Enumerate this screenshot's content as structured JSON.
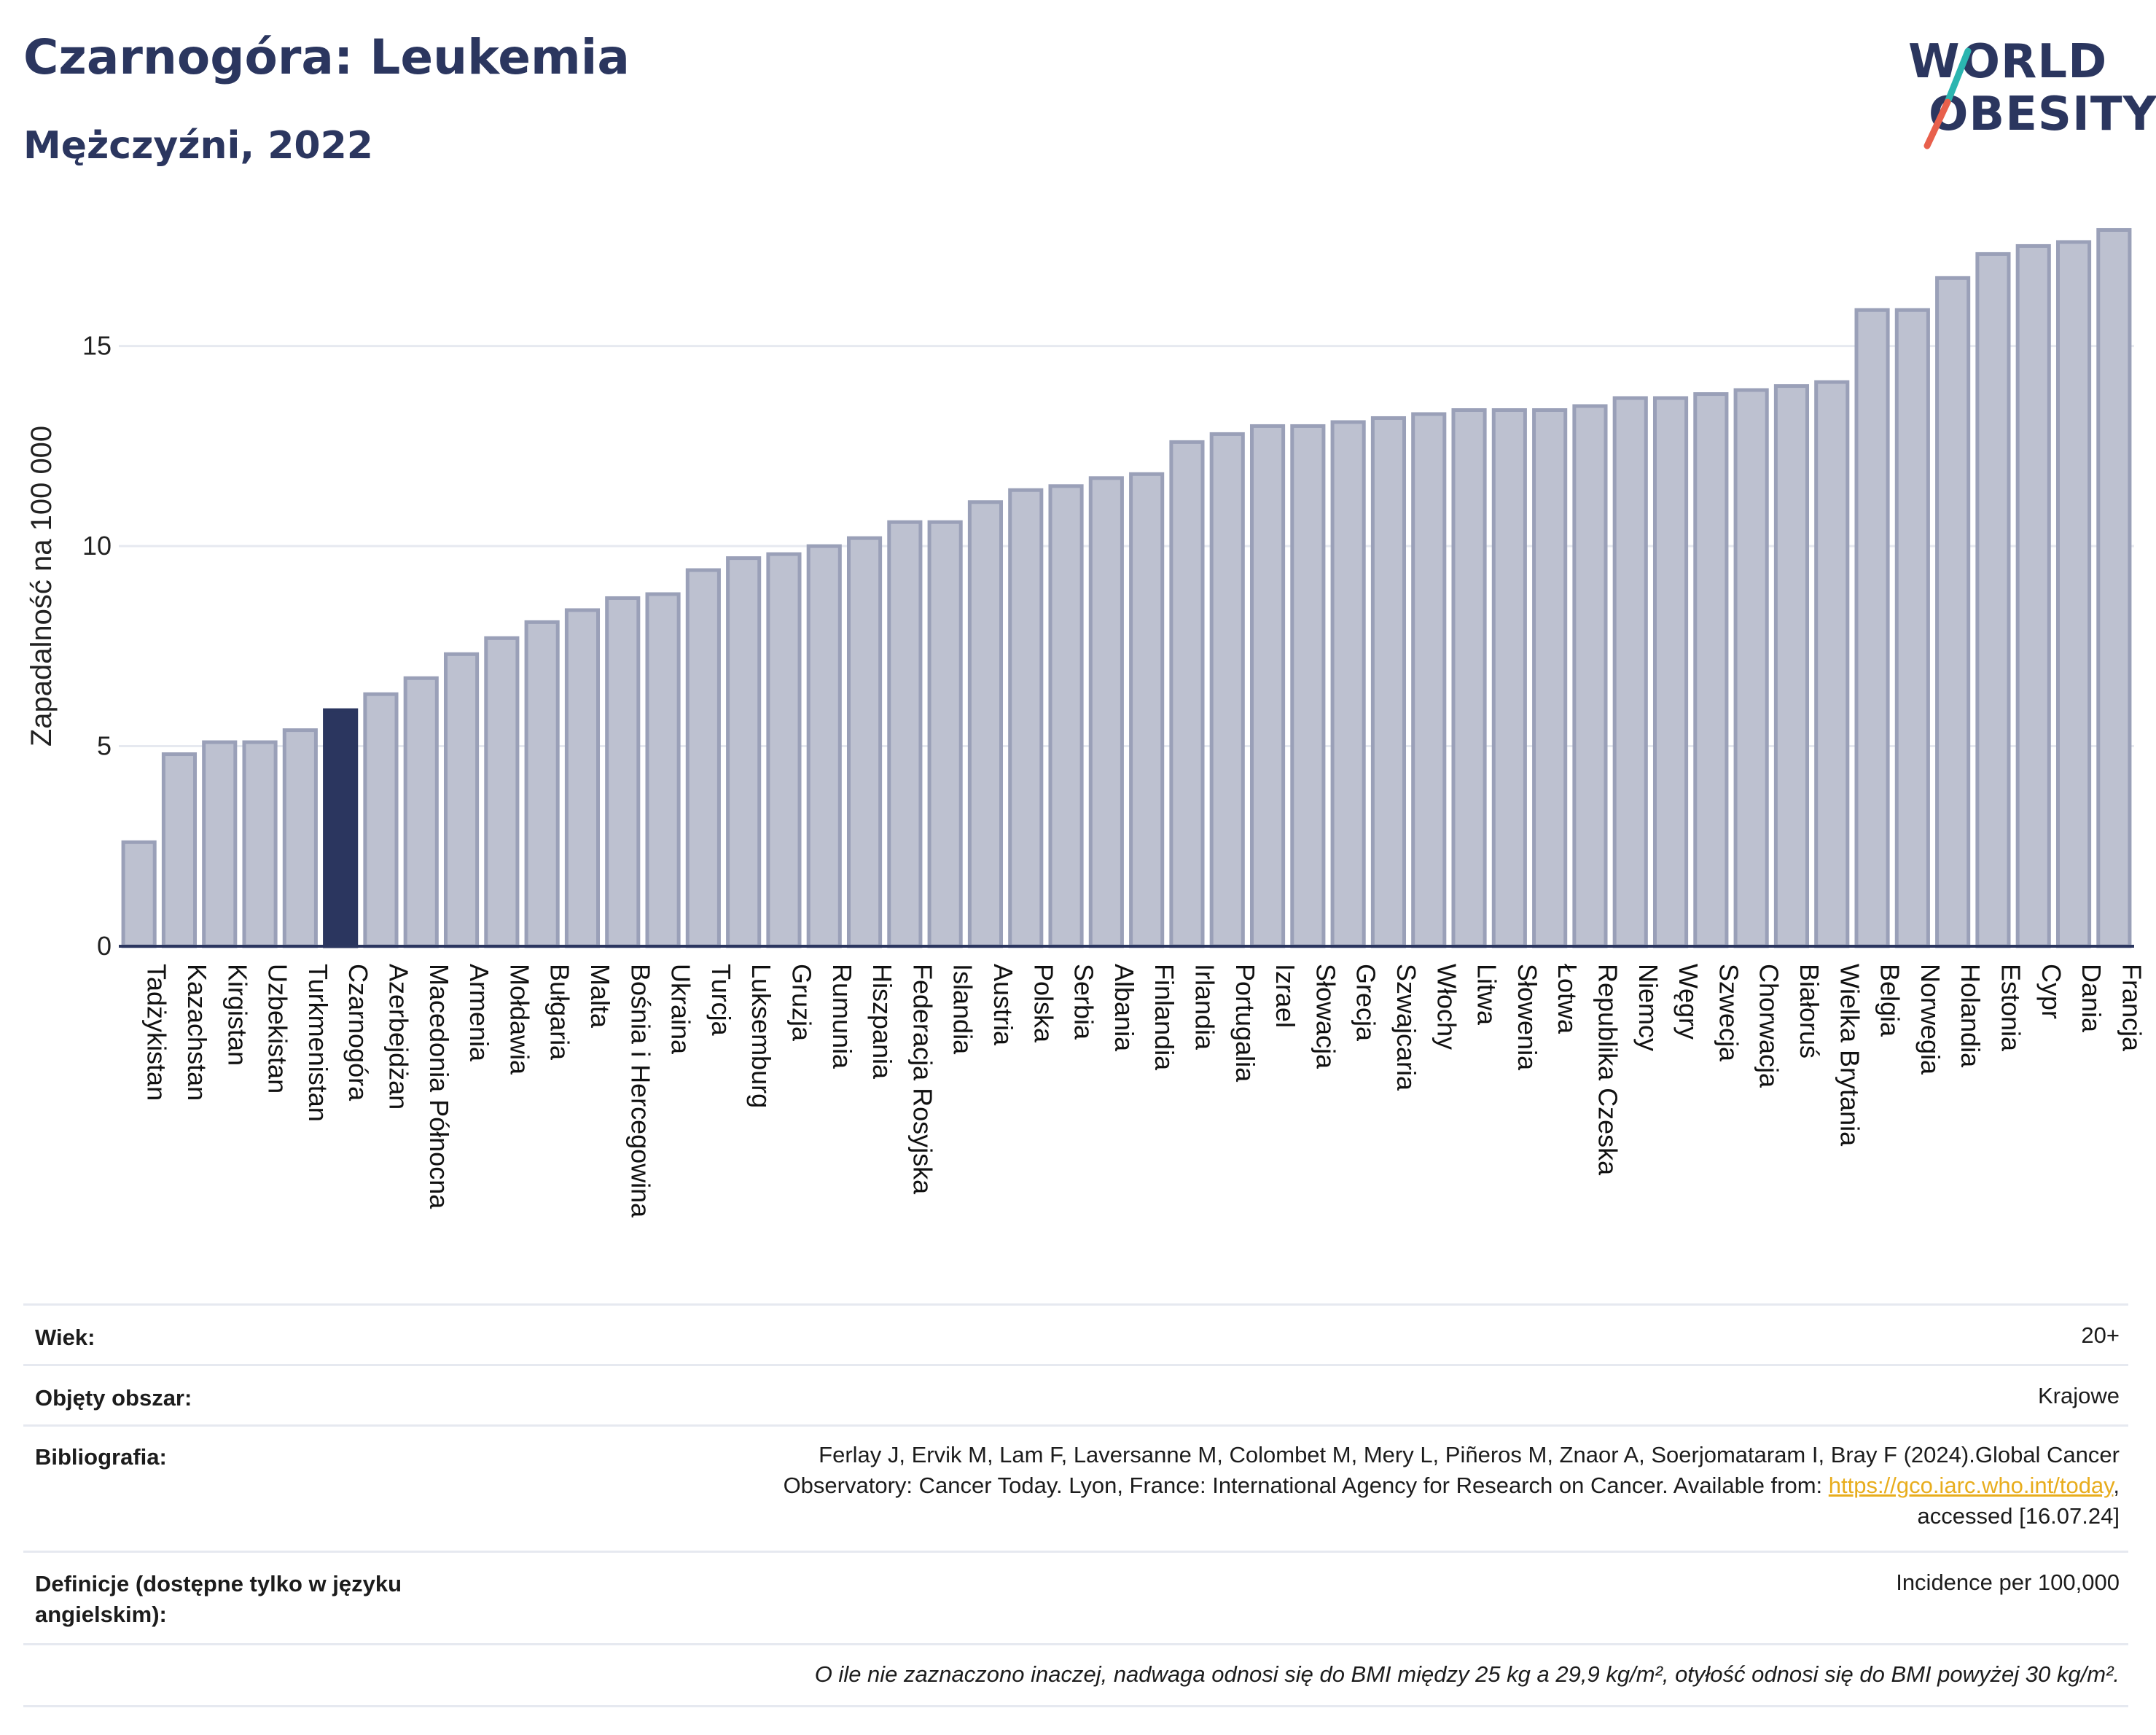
{
  "header": {
    "title": "Czarnogóra: Leukemia",
    "subtitle": "Mężczyźni, 2022"
  },
  "logo": {
    "line1": "WORLD",
    "line2": "OBESITY"
  },
  "colors": {
    "highlight": "#2b365f",
    "bar": "#bdc1d0",
    "bar_border": "#9aa0b8",
    "grid": "#e6e9f0",
    "brand": "#2b365f",
    "accent_teal": "#2bb5b0",
    "accent_red": "#e8604c",
    "link": "#e8ad1d"
  },
  "chart_data": {
    "type": "bar",
    "ylabel": "Zapadalność na 100 000",
    "ylim": [
      0,
      18
    ],
    "yticks": [
      0,
      5,
      10,
      15
    ],
    "grid": true,
    "highlight": "Czarnogóra",
    "categories": [
      "Tadżykistan",
      "Kazachstan",
      "Kirgistan",
      "Uzbekistan",
      "Turkmenistan",
      "Czarnogóra",
      "Azerbejdżan",
      "Macedonia Północna",
      "Armenia",
      "Mołdawia",
      "Bułgaria",
      "Malta",
      "Bośnia i Hercegowina",
      "Ukraina",
      "Turcja",
      "Luksemburg",
      "Gruzja",
      "Rumunia",
      "Hiszpania",
      "Federacja Rosyjska",
      "Islandia",
      "Austria",
      "Polska",
      "Serbia",
      "Albania",
      "Finlandia",
      "Irlandia",
      "Portugalia",
      "Izrael",
      "Słowacja",
      "Grecja",
      "Szwajcaria",
      "Włochy",
      "Litwa",
      "Słowenia",
      "Łotwa",
      "Republika Czeska",
      "Niemcy",
      "Węgry",
      "Szwecja",
      "Chorwacja",
      "Białoruś",
      "Wielka Brytania",
      "Belgia",
      "Norwegia",
      "Holandia",
      "Estonia",
      "Cypr",
      "Dania",
      "Francja"
    ],
    "values": [
      2.6,
      4.8,
      5.1,
      5.1,
      5.4,
      5.9,
      6.3,
      6.7,
      7.3,
      7.7,
      8.1,
      8.4,
      8.7,
      8.8,
      9.4,
      9.7,
      9.8,
      10.0,
      10.2,
      10.6,
      10.6,
      11.1,
      11.4,
      11.5,
      11.7,
      11.8,
      12.6,
      12.8,
      13.0,
      13.0,
      13.1,
      13.2,
      13.3,
      13.4,
      13.4,
      13.4,
      13.5,
      13.7,
      13.7,
      13.8,
      13.9,
      14.0,
      14.1,
      15.9,
      15.9,
      16.7,
      17.3,
      17.5,
      17.6,
      17.9
    ]
  },
  "info": {
    "age_label": "Wiek:",
    "age_value": "20+",
    "area_label": "Objęty obszar:",
    "area_value": "Krajowe",
    "biblio_label": "Bibliografia:",
    "biblio_line1": "Ferlay J, Ervik M, Lam F, Laversanne M, Colombet M, Mery L, Piñeros M, Znaor A, Soerjomataram I, Bray F (2024).Global Cancer",
    "biblio_line2_pre": "Observatory: Cancer Today. Lyon, France: International Agency for Research on Cancer. Available from: ",
    "biblio_link": "https://gco.iarc.who.int/today",
    "biblio_line2_post": ",",
    "biblio_line3": "accessed [16.07.24]",
    "def_label_1": "Definicje (dostępne tylko w języku",
    "def_label_2": "angielskim):",
    "def_value": "Incidence per 100,000",
    "note": "O ile nie zaznaczono inaczej, nadwaga odnosi się do BMI między 25 kg a 29,9 kg/m², otyłość odnosi się do BMI powyżej 30 kg/m²."
  }
}
